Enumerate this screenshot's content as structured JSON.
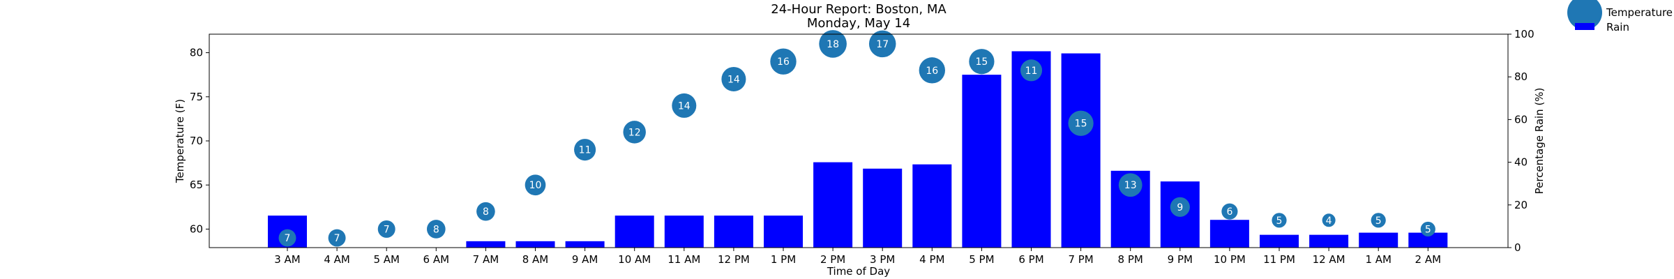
{
  "chart_data": {
    "type": "bar",
    "title": "24-Hour Report: Boston, MA",
    "subtitle": "Monday, May 14",
    "xlabel": "Time of Day",
    "ylabel_left": "Temperature (F)",
    "ylabel_right": "Percentage Rain (%)",
    "categories": [
      "3 AM",
      "4 AM",
      "5 AM",
      "6 AM",
      "7 AM",
      "8 AM",
      "9 AM",
      "10 AM",
      "11 AM",
      "12 PM",
      "1 PM",
      "2 PM",
      "3 PM",
      "4 PM",
      "5 PM",
      "6 PM",
      "7 PM",
      "8 PM",
      "9 PM",
      "10 PM",
      "11 PM",
      "12 AM",
      "1 AM",
      "2 AM"
    ],
    "ylim_left": [
      57.9,
      82.1
    ],
    "yticks_left": [
      60,
      65,
      70,
      75,
      80
    ],
    "ylim_right": [
      0,
      100
    ],
    "yticks_right": [
      0,
      20,
      40,
      60,
      80,
      100
    ],
    "legend_position": "top-right, outside plot",
    "grid": false,
    "series": [
      {
        "name": "Rain",
        "kind": "bar",
        "axis": "right",
        "color": "#0000ff",
        "values": [
          15,
          0,
          0,
          0,
          3,
          3,
          3,
          15,
          15,
          15,
          15,
          40,
          37,
          39,
          81,
          92,
          91,
          36,
          31,
          13,
          6,
          6,
          7,
          7
        ]
      },
      {
        "name": "Temperature",
        "kind": "bubble",
        "axis": "left",
        "color": "#1f77b4",
        "values": [
          59,
          59,
          60,
          60,
          62,
          65,
          69,
          71,
          74,
          77,
          79,
          81,
          81,
          78,
          79,
          78,
          72,
          65,
          62.5,
          62,
          61,
          61,
          61,
          60
        ],
        "sizes": [
          7,
          7,
          7,
          8,
          8,
          10,
          11,
          12,
          14,
          14,
          16,
          18,
          17,
          16,
          15,
          11,
          15,
          13,
          9,
          6,
          5,
          4,
          5,
          5
        ]
      }
    ]
  }
}
